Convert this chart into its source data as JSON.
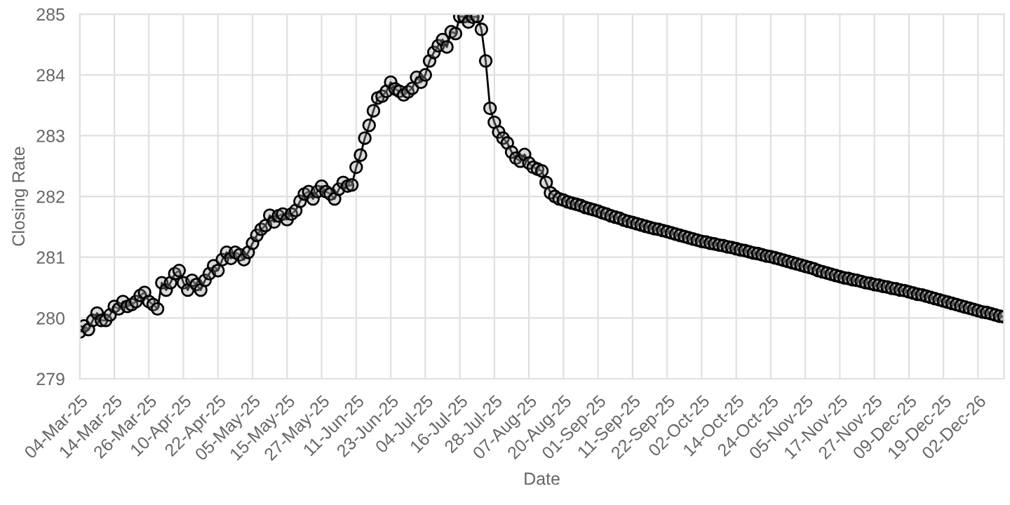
{
  "chart_data": {
    "type": "line",
    "xlabel": "Date",
    "ylabel": "Closing Rate",
    "categories": [
      "04-Mar-25",
      null,
      null,
      null,
      null,
      null,
      null,
      null,
      "14-Mar-25",
      null,
      null,
      null,
      null,
      null,
      null,
      null,
      "26-Mar-25",
      null,
      null,
      null,
      null,
      null,
      null,
      null,
      "10-Apr-25",
      null,
      null,
      null,
      null,
      null,
      null,
      null,
      "22-Apr-25",
      null,
      null,
      null,
      null,
      null,
      null,
      null,
      "05-May-25",
      null,
      null,
      null,
      null,
      null,
      null,
      null,
      "15-May-25",
      null,
      null,
      null,
      null,
      null,
      null,
      null,
      "27-May-25",
      null,
      null,
      null,
      null,
      null,
      null,
      null,
      "11-Jun-25",
      null,
      null,
      null,
      null,
      null,
      null,
      null,
      "23-Jun-25",
      null,
      null,
      null,
      null,
      null,
      null,
      null,
      "04-Jul-25",
      null,
      null,
      null,
      null,
      null,
      null,
      null,
      "16-Jul-25",
      null,
      null,
      null,
      null,
      null,
      null,
      null,
      "28-Jul-25",
      null,
      null,
      null,
      null,
      null,
      null,
      null,
      "07-Aug-25",
      null,
      null,
      null,
      null,
      null,
      null,
      null,
      "20-Aug-25",
      null,
      null,
      null,
      null,
      null,
      null,
      null,
      "01-Sep-25",
      null,
      null,
      null,
      null,
      null,
      null,
      null,
      "11-Sep-25",
      null,
      null,
      null,
      null,
      null,
      null,
      null,
      "22-Sep-25",
      null,
      null,
      null,
      null,
      null,
      null,
      null,
      "02-Oct-25",
      null,
      null,
      null,
      null,
      null,
      null,
      null,
      "14-Oct-25",
      null,
      null,
      null,
      null,
      null,
      null,
      null,
      "24-Oct-25",
      null,
      null,
      null,
      null,
      null,
      null,
      null,
      "05-Nov-25",
      null,
      null,
      null,
      null,
      null,
      null,
      null,
      "17-Nov-25",
      null,
      null,
      null,
      null,
      null,
      null,
      null,
      "27-Nov-25",
      null,
      null,
      null,
      null,
      null,
      null,
      null,
      "09-Dec-25",
      null,
      null,
      null,
      null,
      null,
      null,
      null,
      "19-Dec-25",
      null,
      null,
      null,
      null,
      null,
      null,
      null,
      "02-Dec-26",
      null,
      null,
      null,
      null,
      null,
      null
    ],
    "series": [
      {
        "color": "#000000",
        "values": [
          279.77,
          279.87,
          279.81,
          279.96,
          280.08,
          279.96,
          279.96,
          280.05,
          280.19,
          280.15,
          280.27,
          280.19,
          280.22,
          280.27,
          280.37,
          280.42,
          280.27,
          280.22,
          280.15,
          280.58,
          280.46,
          280.58,
          280.73,
          280.78,
          280.58,
          280.46,
          280.62,
          280.55,
          280.46,
          280.62,
          280.73,
          280.86,
          280.78,
          280.96,
          281.08,
          280.98,
          281.08,
          281.04,
          280.96,
          281.08,
          281.23,
          281.36,
          281.46,
          281.52,
          281.69,
          281.58,
          281.68,
          281.71,
          281.62,
          281.71,
          281.77,
          281.92,
          282.04,
          282.08,
          281.96,
          282.08,
          282.17,
          282.08,
          282.04,
          281.96,
          282.12,
          282.23,
          282.17,
          282.19,
          282.48,
          282.68,
          282.96,
          283.17,
          283.41,
          283.62,
          283.65,
          283.73,
          283.88,
          283.77,
          283.73,
          283.67,
          283.72,
          283.78,
          283.96,
          283.88,
          284.0,
          284.23,
          284.37,
          284.48,
          284.58,
          284.46,
          284.71,
          284.68,
          284.96,
          284.96,
          284.87,
          284.95,
          284.96,
          284.75,
          284.23,
          283.45,
          283.22,
          283.06,
          282.96,
          282.88,
          282.73,
          282.63,
          282.58,
          282.69,
          282.55,
          282.48,
          282.45,
          282.42,
          282.23,
          282.06,
          282.0,
          281.96,
          281.94,
          281.91,
          281.89,
          281.87,
          281.85,
          281.82,
          281.8,
          281.78,
          281.76,
          281.73,
          281.71,
          281.68,
          281.66,
          281.64,
          281.61,
          281.59,
          281.57,
          281.55,
          281.53,
          281.51,
          281.49,
          281.47,
          281.46,
          281.44,
          281.42,
          281.4,
          281.38,
          281.36,
          281.34,
          281.32,
          281.3,
          281.28,
          281.26,
          281.25,
          281.23,
          281.22,
          281.2,
          281.19,
          281.17,
          281.16,
          281.14,
          281.12,
          281.11,
          281.09,
          281.07,
          281.06,
          281.04,
          281.02,
          281.01,
          280.99,
          280.97,
          280.95,
          280.93,
          280.91,
          280.89,
          280.87,
          280.85,
          280.83,
          280.81,
          280.78,
          280.76,
          280.74,
          280.72,
          280.7,
          280.68,
          280.66,
          280.65,
          280.63,
          280.62,
          280.6,
          280.58,
          280.57,
          280.55,
          280.54,
          280.52,
          280.51,
          280.49,
          280.48,
          280.46,
          280.45,
          280.43,
          280.41,
          280.39,
          280.38,
          280.36,
          280.34,
          280.32,
          280.3,
          280.28,
          280.26,
          280.24,
          280.22,
          280.2,
          280.18,
          280.16,
          280.14,
          280.12,
          280.1,
          280.09,
          280.07,
          280.05,
          280.03,
          280.02
        ]
      }
    ],
    "ylim": [
      279,
      285
    ],
    "yticks": [
      279,
      280,
      281,
      282,
      283,
      284,
      285
    ],
    "grid": true,
    "marker": "circle",
    "line_style": "solid",
    "legend": false
  }
}
